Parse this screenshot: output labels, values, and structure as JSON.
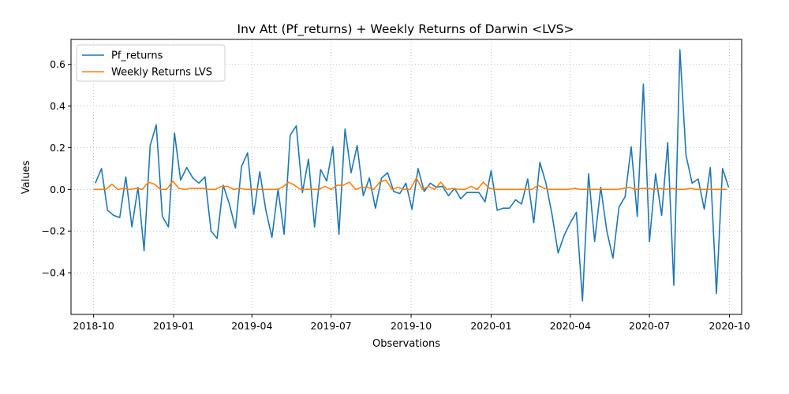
{
  "chart_data": {
    "type": "line",
    "title": "Inv Att (Pf_returns) + Weekly Returns of Darwin <LVS>",
    "xlabel": "Observations",
    "ylabel": "Values",
    "xlim": [
      "2018-09-05",
      "2020-10-15"
    ],
    "ylim": [
      -0.6,
      0.72
    ],
    "grid": true,
    "legend_position": "top-left",
    "x_ticks": [
      {
        "date": "2018-10-01",
        "label": "2018-10"
      },
      {
        "date": "2019-01-01",
        "label": "2019-01"
      },
      {
        "date": "2019-04-01",
        "label": "2019-04"
      },
      {
        "date": "2019-07-01",
        "label": "2019-07"
      },
      {
        "date": "2019-10-01",
        "label": "2019-10"
      },
      {
        "date": "2020-01-01",
        "label": "2020-01"
      },
      {
        "date": "2020-04-01",
        "label": "2020-04"
      },
      {
        "date": "2020-07-01",
        "label": "2020-07"
      },
      {
        "date": "2020-10-01",
        "label": "2020-10"
      }
    ],
    "y_ticks": [
      {
        "value": -0.4,
        "label": "−0.4"
      },
      {
        "value": -0.2,
        "label": "−0.2"
      },
      {
        "value": 0.0,
        "label": "0.0"
      },
      {
        "value": 0.2,
        "label": "0.2"
      },
      {
        "value": 0.4,
        "label": "0.4"
      },
      {
        "value": 0.6,
        "label": "0.6"
      }
    ],
    "series": [
      {
        "name": "Pf_returns",
        "color": "#1f77b4",
        "points": [
          [
            "2018-10-03",
            0.03
          ],
          [
            "2018-10-10",
            0.1
          ],
          [
            "2018-10-17",
            -0.1
          ],
          [
            "2018-10-24",
            -0.125
          ],
          [
            "2018-10-31",
            -0.135
          ],
          [
            "2018-11-07",
            0.06
          ],
          [
            "2018-11-14",
            -0.18
          ],
          [
            "2018-11-21",
            0.01
          ],
          [
            "2018-11-28",
            -0.295
          ],
          [
            "2018-12-05",
            0.21
          ],
          [
            "2018-12-12",
            0.31
          ],
          [
            "2018-12-19",
            -0.13
          ],
          [
            "2018-12-26",
            -0.18
          ],
          [
            "2019-01-02",
            0.27
          ],
          [
            "2019-01-09",
            0.045
          ],
          [
            "2019-01-16",
            0.105
          ],
          [
            "2019-01-23",
            0.055
          ],
          [
            "2019-01-30",
            0.03
          ],
          [
            "2019-02-06",
            0.06
          ],
          [
            "2019-02-13",
            -0.2
          ],
          [
            "2019-02-20",
            -0.235
          ],
          [
            "2019-02-27",
            0.02
          ],
          [
            "2019-03-06",
            -0.07
          ],
          [
            "2019-03-13",
            -0.185
          ],
          [
            "2019-03-20",
            0.11
          ],
          [
            "2019-03-27",
            0.175
          ],
          [
            "2019-04-03",
            -0.12
          ],
          [
            "2019-04-10",
            0.085
          ],
          [
            "2019-04-17",
            -0.1
          ],
          [
            "2019-04-24",
            -0.23
          ],
          [
            "2019-05-01",
            0.0
          ],
          [
            "2019-05-08",
            -0.215
          ],
          [
            "2019-05-15",
            0.26
          ],
          [
            "2019-05-22",
            0.305
          ],
          [
            "2019-05-29",
            -0.015
          ],
          [
            "2019-06-05",
            0.145
          ],
          [
            "2019-06-12",
            -0.18
          ],
          [
            "2019-06-19",
            0.095
          ],
          [
            "2019-06-26",
            0.04
          ],
          [
            "2019-07-03",
            0.205
          ],
          [
            "2019-07-10",
            -0.215
          ],
          [
            "2019-07-17",
            0.29
          ],
          [
            "2019-07-24",
            0.08
          ],
          [
            "2019-07-31",
            0.21
          ],
          [
            "2019-08-07",
            -0.03
          ],
          [
            "2019-08-14",
            0.055
          ],
          [
            "2019-08-21",
            -0.09
          ],
          [
            "2019-08-28",
            0.055
          ],
          [
            "2019-09-04",
            0.08
          ],
          [
            "2019-09-11",
            -0.01
          ],
          [
            "2019-09-18",
            -0.02
          ],
          [
            "2019-09-25",
            0.03
          ],
          [
            "2019-10-02",
            -0.095
          ],
          [
            "2019-10-09",
            0.1
          ],
          [
            "2019-10-16",
            -0.01
          ],
          [
            "2019-10-23",
            0.03
          ],
          [
            "2019-10-30",
            0.01
          ],
          [
            "2019-11-06",
            0.015
          ],
          [
            "2019-11-13",
            -0.03
          ],
          [
            "2019-11-20",
            0.005
          ],
          [
            "2019-11-27",
            -0.045
          ],
          [
            "2019-12-04",
            -0.015
          ],
          [
            "2019-12-11",
            -0.015
          ],
          [
            "2019-12-18",
            -0.015
          ],
          [
            "2019-12-25",
            -0.06
          ],
          [
            "2020-01-01",
            0.09
          ],
          [
            "2020-01-08",
            -0.1
          ],
          [
            "2020-01-15",
            -0.09
          ],
          [
            "2020-01-22",
            -0.09
          ],
          [
            "2020-01-29",
            -0.05
          ],
          [
            "2020-02-05",
            -0.07
          ],
          [
            "2020-02-12",
            0.05
          ],
          [
            "2020-02-19",
            -0.16
          ],
          [
            "2020-02-26",
            0.13
          ],
          [
            "2020-03-04",
            0.03
          ],
          [
            "2020-03-11",
            -0.12
          ],
          [
            "2020-03-18",
            -0.305
          ],
          [
            "2020-03-25",
            -0.22
          ],
          [
            "2020-04-01",
            -0.16
          ],
          [
            "2020-04-08",
            -0.11
          ],
          [
            "2020-04-15",
            -0.535
          ],
          [
            "2020-04-22",
            0.075
          ],
          [
            "2020-04-29",
            -0.25
          ],
          [
            "2020-05-06",
            0.01
          ],
          [
            "2020-05-13",
            -0.2
          ],
          [
            "2020-05-20",
            -0.33
          ],
          [
            "2020-05-27",
            -0.085
          ],
          [
            "2020-06-03",
            -0.035
          ],
          [
            "2020-06-10",
            0.205
          ],
          [
            "2020-06-17",
            -0.13
          ],
          [
            "2020-06-24",
            0.505
          ],
          [
            "2020-07-01",
            -0.25
          ],
          [
            "2020-07-08",
            0.075
          ],
          [
            "2020-07-15",
            -0.125
          ],
          [
            "2020-07-22",
            0.225
          ],
          [
            "2020-07-29",
            -0.46
          ],
          [
            "2020-08-05",
            0.67
          ],
          [
            "2020-08-12",
            0.165
          ],
          [
            "2020-08-19",
            0.03
          ],
          [
            "2020-08-26",
            0.05
          ],
          [
            "2020-09-02",
            -0.095
          ],
          [
            "2020-09-09",
            0.105
          ],
          [
            "2020-09-16",
            -0.5
          ],
          [
            "2020-09-23",
            0.1
          ],
          [
            "2020-09-30",
            0.01
          ]
        ]
      },
      {
        "name": "Weekly Returns LVS",
        "color": "#ff7f0e",
        "points": [
          [
            "2018-10-01",
            0.0
          ],
          [
            "2018-10-08",
            0.0
          ],
          [
            "2018-10-15",
            0.0
          ],
          [
            "2018-10-22",
            0.025
          ],
          [
            "2018-10-29",
            0.0
          ],
          [
            "2018-11-05",
            0.005
          ],
          [
            "2018-11-12",
            0.0
          ],
          [
            "2018-11-19",
            0.005
          ],
          [
            "2018-11-26",
            0.0
          ],
          [
            "2018-12-03",
            0.035
          ],
          [
            "2018-12-10",
            0.025
          ],
          [
            "2018-12-17",
            0.0
          ],
          [
            "2018-12-24",
            0.0
          ],
          [
            "2018-12-31",
            0.04
          ],
          [
            "2019-01-07",
            0.005
          ],
          [
            "2019-01-14",
            0.0
          ],
          [
            "2019-01-21",
            0.005
          ],
          [
            "2019-01-28",
            0.005
          ],
          [
            "2019-02-04",
            0.005
          ],
          [
            "2019-02-11",
            0.0
          ],
          [
            "2019-02-18",
            0.0
          ],
          [
            "2019-02-25",
            0.015
          ],
          [
            "2019-03-04",
            0.015
          ],
          [
            "2019-03-11",
            0.0
          ],
          [
            "2019-03-18",
            0.005
          ],
          [
            "2019-03-25",
            0.0
          ],
          [
            "2019-04-01",
            0.0
          ],
          [
            "2019-04-08",
            0.0
          ],
          [
            "2019-04-15",
            0.0
          ],
          [
            "2019-04-22",
            0.0
          ],
          [
            "2019-04-29",
            0.0
          ],
          [
            "2019-05-06",
            0.01
          ],
          [
            "2019-05-13",
            0.035
          ],
          [
            "2019-05-20",
            0.02
          ],
          [
            "2019-05-27",
            0.0
          ],
          [
            "2019-06-03",
            0.0
          ],
          [
            "2019-06-10",
            0.0
          ],
          [
            "2019-06-17",
            0.0
          ],
          [
            "2019-06-24",
            0.015
          ],
          [
            "2019-07-01",
            0.0
          ],
          [
            "2019-07-08",
            0.02
          ],
          [
            "2019-07-15",
            0.02
          ],
          [
            "2019-07-22",
            0.035
          ],
          [
            "2019-07-29",
            0.0
          ],
          [
            "2019-08-05",
            0.01
          ],
          [
            "2019-08-12",
            0.01
          ],
          [
            "2019-08-19",
            0.0
          ],
          [
            "2019-08-26",
            0.035
          ],
          [
            "2019-09-02",
            0.045
          ],
          [
            "2019-09-09",
            0.0
          ],
          [
            "2019-09-16",
            0.01
          ],
          [
            "2019-09-23",
            0.0
          ],
          [
            "2019-09-30",
            0.0
          ],
          [
            "2019-10-07",
            0.055
          ],
          [
            "2019-10-14",
            0.0
          ],
          [
            "2019-10-21",
            0.015
          ],
          [
            "2019-10-28",
            0.0
          ],
          [
            "2019-11-04",
            0.035
          ],
          [
            "2019-11-11",
            0.0
          ],
          [
            "2019-11-18",
            0.005
          ],
          [
            "2019-11-25",
            0.0
          ],
          [
            "2019-12-02",
            0.0
          ],
          [
            "2019-12-09",
            0.015
          ],
          [
            "2019-12-16",
            0.0
          ],
          [
            "2019-12-23",
            0.035
          ],
          [
            "2019-12-30",
            0.005
          ],
          [
            "2020-01-06",
            0.0
          ],
          [
            "2020-01-13",
            0.0
          ],
          [
            "2020-01-20",
            0.0
          ],
          [
            "2020-01-27",
            0.0
          ],
          [
            "2020-02-03",
            0.0
          ],
          [
            "2020-02-10",
            0.0
          ],
          [
            "2020-02-17",
            0.0
          ],
          [
            "2020-02-24",
            0.02
          ],
          [
            "2020-03-02",
            0.005
          ],
          [
            "2020-03-09",
            0.0
          ],
          [
            "2020-03-16",
            0.0
          ],
          [
            "2020-03-23",
            0.0
          ],
          [
            "2020-03-30",
            0.0
          ],
          [
            "2020-04-06",
            0.005
          ],
          [
            "2020-04-13",
            0.0
          ],
          [
            "2020-04-20",
            0.0
          ],
          [
            "2020-04-27",
            0.0
          ],
          [
            "2020-05-04",
            0.0
          ],
          [
            "2020-05-11",
            0.0
          ],
          [
            "2020-05-18",
            0.0
          ],
          [
            "2020-05-25",
            0.0
          ],
          [
            "2020-06-01",
            0.005
          ],
          [
            "2020-06-08",
            0.01
          ],
          [
            "2020-06-15",
            0.0
          ],
          [
            "2020-06-22",
            0.005
          ],
          [
            "2020-06-29",
            0.005
          ],
          [
            "2020-07-06",
            0.0
          ],
          [
            "2020-07-13",
            0.005
          ],
          [
            "2020-07-20",
            0.0
          ],
          [
            "2020-07-27",
            0.005
          ],
          [
            "2020-08-03",
            0.0
          ],
          [
            "2020-08-10",
            0.0
          ],
          [
            "2020-08-17",
            0.005
          ],
          [
            "2020-08-24",
            0.0
          ],
          [
            "2020-08-31",
            0.0
          ],
          [
            "2020-09-07",
            0.0
          ],
          [
            "2020-09-14",
            0.0
          ],
          [
            "2020-09-21",
            0.0
          ],
          [
            "2020-09-28",
            0.0
          ]
        ]
      }
    ]
  }
}
